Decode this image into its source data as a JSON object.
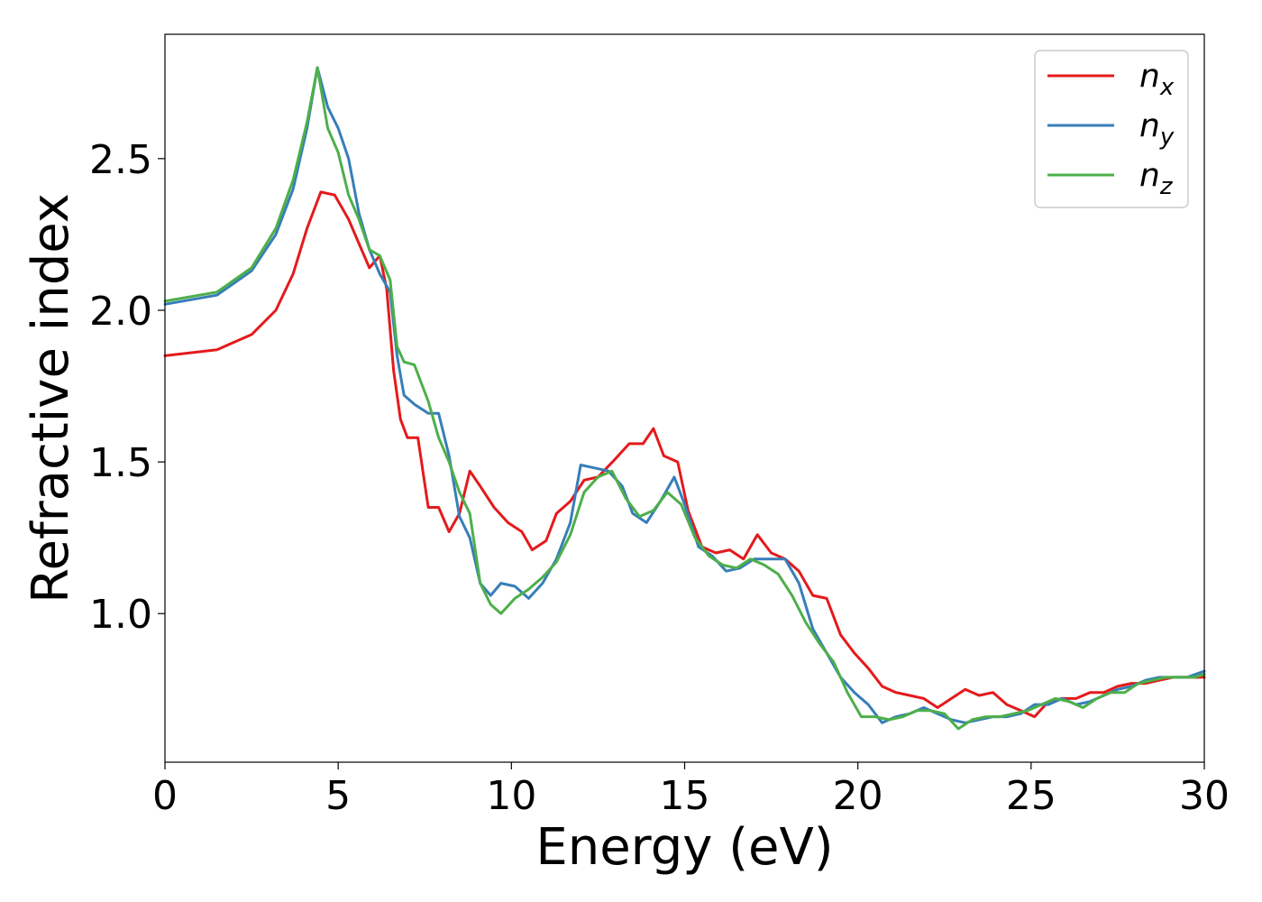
{
  "chart_data": {
    "type": "line",
    "title": "",
    "xlabel": "Energy (eV)",
    "ylabel": "Refractive index",
    "xlim": [
      0,
      30
    ],
    "ylim": [
      0.51,
      2.91
    ],
    "xticks": [
      0,
      5,
      10,
      15,
      20,
      25,
      30
    ],
    "xtick_labels": [
      "0",
      "5",
      "10",
      "15",
      "20",
      "25",
      "30"
    ],
    "yticks": [
      1.0,
      1.5,
      2.0,
      2.5
    ],
    "ytick_labels": [
      "1.0",
      "1.5",
      "2.0",
      "2.5"
    ],
    "grid": false,
    "legend_position": "top-right",
    "series": [
      {
        "name": "n",
        "subscript": "x",
        "color": "#e41a1c",
        "points": [
          [
            0,
            1.85
          ],
          [
            1.5,
            1.87
          ],
          [
            2.5,
            1.92
          ],
          [
            3.2,
            2.0
          ],
          [
            3.7,
            2.12
          ],
          [
            4.1,
            2.27
          ],
          [
            4.5,
            2.39
          ],
          [
            4.9,
            2.38
          ],
          [
            5.3,
            2.3
          ],
          [
            5.6,
            2.22
          ],
          [
            5.9,
            2.14
          ],
          [
            6.2,
            2.18
          ],
          [
            6.4,
            2.07
          ],
          [
            6.6,
            1.8
          ],
          [
            6.8,
            1.64
          ],
          [
            7.0,
            1.58
          ],
          [
            7.3,
            1.58
          ],
          [
            7.6,
            1.35
          ],
          [
            7.9,
            1.35
          ],
          [
            8.2,
            1.27
          ],
          [
            8.5,
            1.33
          ],
          [
            8.8,
            1.47
          ],
          [
            9.1,
            1.42
          ],
          [
            9.5,
            1.35
          ],
          [
            9.9,
            1.3
          ],
          [
            10.3,
            1.27
          ],
          [
            10.6,
            1.21
          ],
          [
            11.0,
            1.24
          ],
          [
            11.3,
            1.33
          ],
          [
            11.7,
            1.37
          ],
          [
            12.1,
            1.44
          ],
          [
            12.5,
            1.45
          ],
          [
            13.0,
            1.51
          ],
          [
            13.4,
            1.56
          ],
          [
            13.8,
            1.56
          ],
          [
            14.1,
            1.61
          ],
          [
            14.4,
            1.52
          ],
          [
            14.8,
            1.5
          ],
          [
            15.1,
            1.34
          ],
          [
            15.5,
            1.22
          ],
          [
            15.9,
            1.2
          ],
          [
            16.3,
            1.21
          ],
          [
            16.7,
            1.18
          ],
          [
            17.1,
            1.26
          ],
          [
            17.5,
            1.2
          ],
          [
            17.9,
            1.18
          ],
          [
            18.3,
            1.14
          ],
          [
            18.7,
            1.06
          ],
          [
            19.1,
            1.05
          ],
          [
            19.5,
            0.93
          ],
          [
            19.9,
            0.87
          ],
          [
            20.3,
            0.82
          ],
          [
            20.7,
            0.76
          ],
          [
            21.1,
            0.74
          ],
          [
            21.5,
            0.73
          ],
          [
            21.9,
            0.72
          ],
          [
            22.3,
            0.69
          ],
          [
            22.7,
            0.72
          ],
          [
            23.1,
            0.75
          ],
          [
            23.5,
            0.73
          ],
          [
            23.9,
            0.74
          ],
          [
            24.3,
            0.7
          ],
          [
            24.7,
            0.68
          ],
          [
            25.1,
            0.66
          ],
          [
            25.5,
            0.71
          ],
          [
            25.9,
            0.72
          ],
          [
            26.3,
            0.72
          ],
          [
            26.7,
            0.74
          ],
          [
            27.1,
            0.74
          ],
          [
            27.5,
            0.76
          ],
          [
            27.9,
            0.77
          ],
          [
            28.3,
            0.77
          ],
          [
            28.7,
            0.78
          ],
          [
            29.1,
            0.79
          ],
          [
            29.5,
            0.79
          ],
          [
            30.0,
            0.79
          ]
        ]
      },
      {
        "name": "n",
        "subscript": "y",
        "color": "#377eb8",
        "points": [
          [
            0,
            2.02
          ],
          [
            1.5,
            2.05
          ],
          [
            2.5,
            2.13
          ],
          [
            3.2,
            2.25
          ],
          [
            3.7,
            2.4
          ],
          [
            4.1,
            2.6
          ],
          [
            4.4,
            2.8
          ],
          [
            4.7,
            2.67
          ],
          [
            5.0,
            2.6
          ],
          [
            5.3,
            2.5
          ],
          [
            5.6,
            2.32
          ],
          [
            5.9,
            2.2
          ],
          [
            6.2,
            2.12
          ],
          [
            6.5,
            2.06
          ],
          [
            6.7,
            1.85
          ],
          [
            6.9,
            1.72
          ],
          [
            7.2,
            1.69
          ],
          [
            7.6,
            1.66
          ],
          [
            7.9,
            1.66
          ],
          [
            8.2,
            1.52
          ],
          [
            8.5,
            1.32
          ],
          [
            8.8,
            1.25
          ],
          [
            9.1,
            1.1
          ],
          [
            9.4,
            1.06
          ],
          [
            9.7,
            1.1
          ],
          [
            10.1,
            1.09
          ],
          [
            10.5,
            1.05
          ],
          [
            10.9,
            1.1
          ],
          [
            11.3,
            1.18
          ],
          [
            11.7,
            1.3
          ],
          [
            12.0,
            1.49
          ],
          [
            12.4,
            1.48
          ],
          [
            12.8,
            1.47
          ],
          [
            13.2,
            1.42
          ],
          [
            13.5,
            1.33
          ],
          [
            13.9,
            1.3
          ],
          [
            14.3,
            1.37
          ],
          [
            14.7,
            1.45
          ],
          [
            15.0,
            1.36
          ],
          [
            15.4,
            1.22
          ],
          [
            15.8,
            1.19
          ],
          [
            16.2,
            1.14
          ],
          [
            16.6,
            1.15
          ],
          [
            17.0,
            1.18
          ],
          [
            17.5,
            1.18
          ],
          [
            17.9,
            1.18
          ],
          [
            18.3,
            1.1
          ],
          [
            18.7,
            0.95
          ],
          [
            19.1,
            0.87
          ],
          [
            19.5,
            0.79
          ],
          [
            19.9,
            0.74
          ],
          [
            20.3,
            0.7
          ],
          [
            20.7,
            0.64
          ],
          [
            21.1,
            0.66
          ],
          [
            21.5,
            0.67
          ],
          [
            21.9,
            0.69
          ],
          [
            22.3,
            0.67
          ],
          [
            22.7,
            0.65
          ],
          [
            23.1,
            0.64
          ],
          [
            23.5,
            0.65
          ],
          [
            23.9,
            0.66
          ],
          [
            24.3,
            0.66
          ],
          [
            24.7,
            0.67
          ],
          [
            25.1,
            0.7
          ],
          [
            25.5,
            0.7
          ],
          [
            25.9,
            0.72
          ],
          [
            26.3,
            0.7
          ],
          [
            26.7,
            0.71
          ],
          [
            27.1,
            0.73
          ],
          [
            27.5,
            0.75
          ],
          [
            27.9,
            0.76
          ],
          [
            28.3,
            0.78
          ],
          [
            28.7,
            0.79
          ],
          [
            29.1,
            0.79
          ],
          [
            29.5,
            0.79
          ],
          [
            30.0,
            0.81
          ]
        ]
      },
      {
        "name": "n",
        "subscript": "z",
        "color": "#4daf4a",
        "points": [
          [
            0,
            2.03
          ],
          [
            1.5,
            2.06
          ],
          [
            2.5,
            2.14
          ],
          [
            3.2,
            2.27
          ],
          [
            3.7,
            2.43
          ],
          [
            4.1,
            2.62
          ],
          [
            4.4,
            2.8
          ],
          [
            4.7,
            2.6
          ],
          [
            5.0,
            2.52
          ],
          [
            5.3,
            2.38
          ],
          [
            5.6,
            2.3
          ],
          [
            5.9,
            2.2
          ],
          [
            6.2,
            2.18
          ],
          [
            6.5,
            2.1
          ],
          [
            6.7,
            1.88
          ],
          [
            6.9,
            1.83
          ],
          [
            7.2,
            1.82
          ],
          [
            7.6,
            1.7
          ],
          [
            7.9,
            1.58
          ],
          [
            8.2,
            1.5
          ],
          [
            8.5,
            1.4
          ],
          [
            8.8,
            1.33
          ],
          [
            9.1,
            1.1
          ],
          [
            9.4,
            1.03
          ],
          [
            9.7,
            1.0
          ],
          [
            10.1,
            1.05
          ],
          [
            10.5,
            1.08
          ],
          [
            10.9,
            1.12
          ],
          [
            11.3,
            1.17
          ],
          [
            11.7,
            1.26
          ],
          [
            12.1,
            1.4
          ],
          [
            12.5,
            1.45
          ],
          [
            12.9,
            1.47
          ],
          [
            13.3,
            1.38
          ],
          [
            13.7,
            1.32
          ],
          [
            14.1,
            1.34
          ],
          [
            14.5,
            1.4
          ],
          [
            14.9,
            1.36
          ],
          [
            15.3,
            1.25
          ],
          [
            15.7,
            1.19
          ],
          [
            16.1,
            1.16
          ],
          [
            16.5,
            1.15
          ],
          [
            16.9,
            1.18
          ],
          [
            17.3,
            1.16
          ],
          [
            17.7,
            1.13
          ],
          [
            18.1,
            1.06
          ],
          [
            18.5,
            0.97
          ],
          [
            18.9,
            0.9
          ],
          [
            19.3,
            0.84
          ],
          [
            19.7,
            0.74
          ],
          [
            20.1,
            0.66
          ],
          [
            20.5,
            0.66
          ],
          [
            20.9,
            0.65
          ],
          [
            21.3,
            0.66
          ],
          [
            21.7,
            0.68
          ],
          [
            22.1,
            0.68
          ],
          [
            22.5,
            0.67
          ],
          [
            22.9,
            0.62
          ],
          [
            23.3,
            0.65
          ],
          [
            23.7,
            0.66
          ],
          [
            24.1,
            0.66
          ],
          [
            24.5,
            0.67
          ],
          [
            24.9,
            0.68
          ],
          [
            25.3,
            0.7
          ],
          [
            25.7,
            0.72
          ],
          [
            26.1,
            0.71
          ],
          [
            26.5,
            0.69
          ],
          [
            26.9,
            0.72
          ],
          [
            27.3,
            0.74
          ],
          [
            27.7,
            0.74
          ],
          [
            28.1,
            0.77
          ],
          [
            28.5,
            0.78
          ],
          [
            28.9,
            0.79
          ],
          [
            29.3,
            0.79
          ],
          [
            29.7,
            0.79
          ],
          [
            30.0,
            0.8
          ]
        ]
      }
    ]
  }
}
